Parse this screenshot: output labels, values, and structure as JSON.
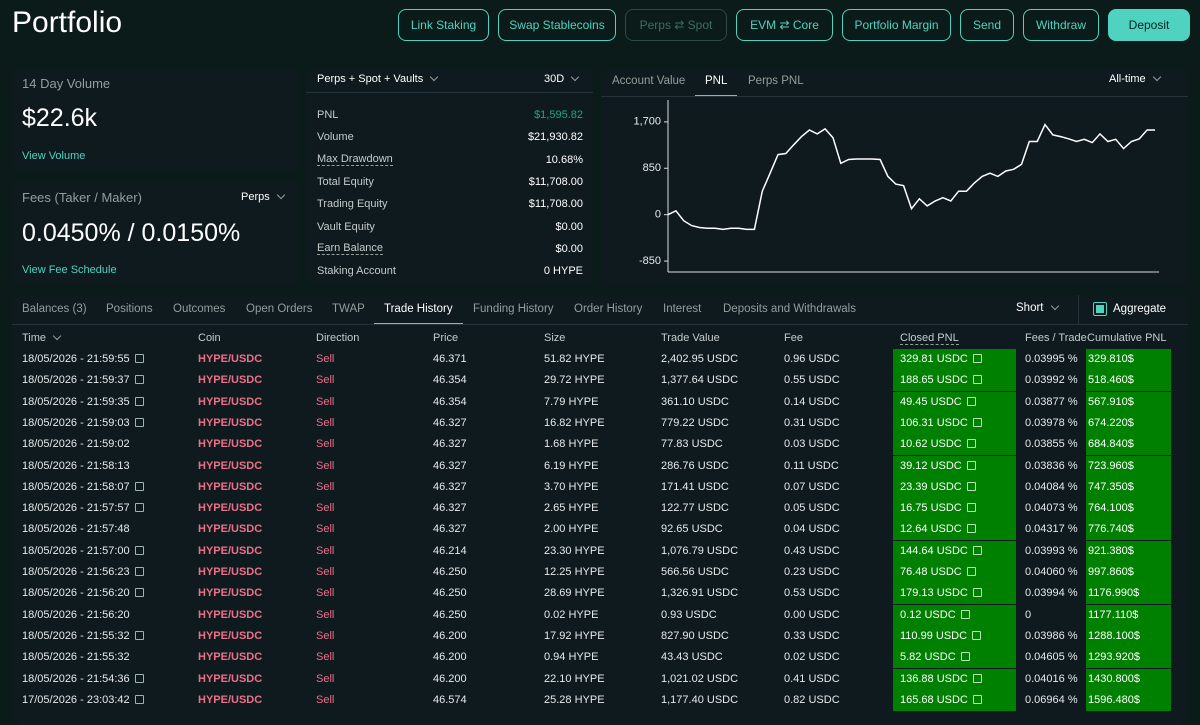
{
  "header": {
    "title": "Portfolio",
    "buttons": [
      {
        "label": "Link Staking",
        "state": "normal"
      },
      {
        "label": "Swap Stablecoins",
        "state": "normal"
      },
      {
        "label": "Perps ⇄ Spot",
        "state": "disabled"
      },
      {
        "label": "EVM ⇄ Core",
        "state": "normal"
      },
      {
        "label": "Portfolio Margin",
        "state": "normal"
      },
      {
        "label": "Send",
        "state": "normal"
      },
      {
        "label": "Withdraw",
        "state": "normal"
      },
      {
        "label": "Deposit",
        "state": "primary"
      }
    ]
  },
  "volume_card": {
    "label": "14 Day Volume",
    "value": "$22.6k",
    "link": "View Volume"
  },
  "fees_card": {
    "label": "Fees (Taker / Maker)",
    "selector": "Perps",
    "value": "0.0450% / 0.0150%",
    "link": "View Fee Schedule"
  },
  "stats": {
    "selector": "Perps + Spot + Vaults",
    "period": "30D",
    "rows": [
      [
        "PNL",
        "$1,595.82"
      ],
      [
        "Volume",
        "$21,930.82"
      ],
      [
        "Max Drawdown",
        "10.68%"
      ],
      [
        "Total Equity",
        "$11,708.00"
      ],
      [
        "Trading Equity",
        "$11,708.00"
      ],
      [
        "Vault Equity",
        "$0.00"
      ],
      [
        "Earn Balance",
        "$0.00"
      ],
      [
        "Staking Account",
        "0 HYPE"
      ]
    ]
  },
  "chart_panel": {
    "tabs": [
      "Account Value",
      "PNL",
      "Perps PNL"
    ],
    "active_tab": 1,
    "range": "All-time"
  },
  "chart_data": {
    "type": "line",
    "color": "#ffffff",
    "ylim": [
      -1050,
      2100
    ],
    "yticks": [
      {
        "value": 1700,
        "label": "1,700"
      },
      850,
      0,
      -850
    ],
    "values": [
      0,
      70,
      -110,
      -200,
      -235,
      -250,
      -250,
      -270,
      -250,
      -250,
      -270,
      -270,
      430,
      760,
      1100,
      1120,
      1280,
      1430,
      1550,
      1480,
      1570,
      1410,
      940,
      1010,
      1020,
      1020,
      1020,
      1010,
      700,
      560,
      530,
      110,
      290,
      160,
      250,
      310,
      250,
      430,
      430,
      580,
      700,
      760,
      700,
      800,
      830,
      920,
      1340,
      1340,
      1650,
      1460,
      1430,
      1390,
      1340,
      1380,
      1320,
      1480,
      1340,
      1380,
      1210,
      1340,
      1390,
      1550,
      1550
    ]
  },
  "tabs": {
    "items": [
      "Balances (3)",
      "Positions",
      "Outcomes",
      "Open Orders",
      "TWAP",
      "Trade History",
      "Funding History",
      "Order History",
      "Interest",
      "Deposits and Withdrawals"
    ],
    "active": 5,
    "side_selector": "Short",
    "checkbox": "Aggregate",
    "checked": true
  },
  "table": {
    "columns": [
      "Time",
      "Coin",
      "Direction",
      "Price",
      "Size",
      "Trade Value",
      "Fee",
      "Closed PNL",
      "Fees / Trade",
      "Cumulative PNL"
    ],
    "rows": [
      {
        "cells": [
          "18/05/2026 - 21:59:55",
          "HYPE/USDC",
          "Sell",
          "46.371",
          "51.82 HYPE",
          "2,402.95 USDC",
          "0.96 USDC",
          "329.81 USDC",
          "0.03995 %",
          "329.810$"
        ],
        "time_link": true
      },
      {
        "cells": [
          "18/05/2026 - 21:59:37",
          "HYPE/USDC",
          "Sell",
          "46.354",
          "29.72 HYPE",
          "1,377.64 USDC",
          "0.55 USDC",
          "188.65 USDC",
          "0.03992 %",
          "518.460$"
        ],
        "time_link": true
      },
      {
        "cells": [
          "18/05/2026 - 21:59:35",
          "HYPE/USDC",
          "Sell",
          "46.354",
          "7.79 HYPE",
          "361.10 USDC",
          "0.14 USDC",
          "49.45 USDC",
          "0.03877 %",
          "567.910$"
        ],
        "time_link": true
      },
      {
        "cells": [
          "18/05/2026 - 21:59:03",
          "HYPE/USDC",
          "Sell",
          "46.327",
          "16.82 HYPE",
          "779.22 USDC",
          "0.31 USDC",
          "106.31 USDC",
          "0.03978 %",
          "674.220$"
        ],
        "time_link": true
      },
      {
        "cells": [
          "18/05/2026 - 21:59:02",
          "HYPE/USDC",
          "Sell",
          "46.327",
          "1.68 HYPE",
          "77.83 USDC",
          "0.03 USDC",
          "10.62 USDC",
          "0.03855 %",
          "684.840$"
        ],
        "time_link": false
      },
      {
        "cells": [
          "18/05/2026 - 21:58:13",
          "HYPE/USDC",
          "Sell",
          "46.327",
          "6.19 HYPE",
          "286.76 USDC",
          "0.11 USDC",
          "39.12 USDC",
          "0.03836 %",
          "723.960$"
        ],
        "time_link": false
      },
      {
        "cells": [
          "18/05/2026 - 21:58:07",
          "HYPE/USDC",
          "Sell",
          "46.327",
          "3.70 HYPE",
          "171.41 USDC",
          "0.07 USDC",
          "23.39 USDC",
          "0.04084 %",
          "747.350$"
        ],
        "time_link": true
      },
      {
        "cells": [
          "18/05/2026 - 21:57:57",
          "HYPE/USDC",
          "Sell",
          "46.327",
          "2.65 HYPE",
          "122.77 USDC",
          "0.05 USDC",
          "16.75 USDC",
          "0.04073 %",
          "764.100$"
        ],
        "time_link": true
      },
      {
        "cells": [
          "18/05/2026 - 21:57:48",
          "HYPE/USDC",
          "Sell",
          "46.327",
          "2.00 HYPE",
          "92.65 USDC",
          "0.04 USDC",
          "12.64 USDC",
          "0.04317 %",
          "776.740$"
        ],
        "time_link": false
      },
      {
        "cells": [
          "18/05/2026 - 21:57:00",
          "HYPE/USDC",
          "Sell",
          "46.214",
          "23.30 HYPE",
          "1,076.79 USDC",
          "0.43 USDC",
          "144.64 USDC",
          "0.03993 %",
          "921.380$"
        ],
        "time_link": true
      },
      {
        "cells": [
          "18/05/2026 - 21:56:23",
          "HYPE/USDC",
          "Sell",
          "46.250",
          "12.25 HYPE",
          "566.56 USDC",
          "0.23 USDC",
          "76.48 USDC",
          "0.04060 %",
          "997.860$"
        ],
        "time_link": true
      },
      {
        "cells": [
          "18/05/2026 - 21:56:20",
          "HYPE/USDC",
          "Sell",
          "46.250",
          "28.69 HYPE",
          "1,326.91 USDC",
          "0.53 USDC",
          "179.13 USDC",
          "0.03994 %",
          "1176.990$"
        ],
        "time_link": true
      },
      {
        "cells": [
          "18/05/2026 - 21:56:20",
          "HYPE/USDC",
          "Sell",
          "46.250",
          "0.02 HYPE",
          "0.93 USDC",
          "0.00 USDC",
          "0.12 USDC",
          "0",
          "1177.110$"
        ],
        "time_link": false
      },
      {
        "cells": [
          "18/05/2026 - 21:55:32",
          "HYPE/USDC",
          "Sell",
          "46.200",
          "17.92 HYPE",
          "827.90 USDC",
          "0.33 USDC",
          "110.99 USDC",
          "0.03986 %",
          "1288.100$"
        ],
        "time_link": true
      },
      {
        "cells": [
          "18/05/2026 - 21:55:32",
          "HYPE/USDC",
          "Sell",
          "46.200",
          "0.94 HYPE",
          "43.43 USDC",
          "0.02 USDC",
          "5.82 USDC",
          "0.04605 %",
          "1293.920$"
        ],
        "time_link": false
      },
      {
        "cells": [
          "18/05/2026 - 21:54:36",
          "HYPE/USDC",
          "Sell",
          "46.200",
          "22.10 HYPE",
          "1,021.02 USDC",
          "0.41 USDC",
          "136.88 USDC",
          "0.04016 %",
          "1430.800$"
        ],
        "time_link": true
      },
      {
        "cells": [
          "17/05/2026 - 23:03:42",
          "HYPE/USDC",
          "Sell",
          "46.574",
          "25.28 HYPE",
          "1,177.40 USDC",
          "0.82 USDC",
          "165.68 USDC",
          "0.06964 %",
          "1596.480$"
        ],
        "time_link": true
      }
    ]
  }
}
